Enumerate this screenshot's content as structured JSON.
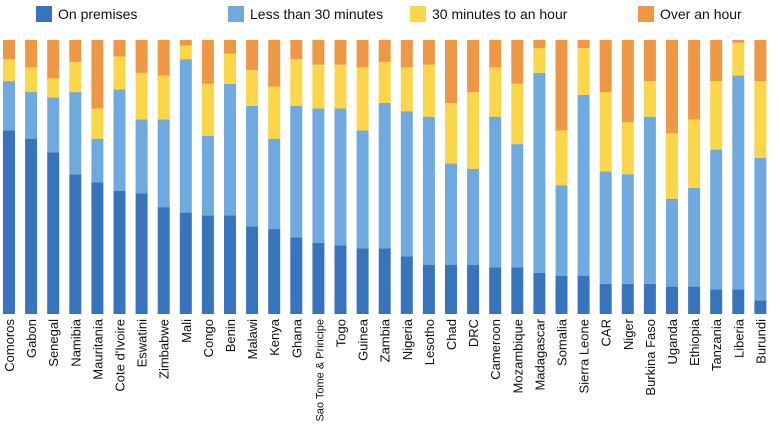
{
  "chart_data": {
    "type": "bar",
    "stacked": true,
    "normalized": true,
    "title": "",
    "xlabel": "",
    "ylabel": "",
    "ylim": [
      0,
      100
    ],
    "grid": false,
    "legend_position": "top",
    "categories": [
      "Comoros",
      "Gabon",
      "Senegal",
      "Namibia",
      "Mauritania",
      "Cote d'Ivoire",
      "Eswatini",
      "Zimbabwe",
      "Mali",
      "Congo",
      "Benin",
      "Malawi",
      "Kenya",
      "Ghana",
      "Sao Tome & Principe",
      "Togo",
      "Guinea",
      "Zambia",
      "Nigeria",
      "Lesotho",
      "Chad",
      "DRC",
      "Cameroon",
      "Mozambique",
      "Madagascar",
      "Somalia",
      "Sierra Leone",
      "CAR",
      "Niger",
      "Burkina Faso",
      "Uganda",
      "Ethiopia",
      "Tanzania",
      "Liberia",
      "Burundi"
    ],
    "series": [
      {
        "name": "On premises",
        "color": "#3874BB",
        "values": [
          67,
          64,
          59,
          51,
          48,
          45,
          44,
          39,
          37,
          36,
          36,
          32,
          31,
          28,
          26,
          25,
          24,
          24,
          21,
          18,
          18,
          18,
          17,
          17,
          15,
          14,
          14,
          11,
          11,
          11,
          10,
          10,
          9,
          9,
          5
        ]
      },
      {
        "name": "Less than 30 minutes",
        "color": "#6FA9DD",
        "values": [
          18,
          17,
          20,
          30,
          16,
          37,
          27,
          32,
          56,
          29,
          48,
          44,
          33,
          48,
          49,
          50,
          43,
          53,
          53,
          54,
          37,
          35,
          55,
          45,
          73,
          33,
          66,
          41,
          40,
          61,
          32,
          36,
          51,
          78,
          52
        ]
      },
      {
        "name": "30 minutes to an hour",
        "color": "#F9D64A",
        "values": [
          8,
          9,
          7,
          11,
          11,
          12,
          17,
          16,
          5,
          19,
          11,
          13,
          19,
          17,
          16,
          16,
          23,
          15,
          16,
          19,
          22,
          28,
          18,
          22,
          9,
          20,
          17,
          29,
          19,
          13,
          24,
          25,
          25,
          12,
          28
        ]
      },
      {
        "name": "Over an hour",
        "color": "#EE9744",
        "values": [
          7,
          10,
          14,
          8,
          25,
          6,
          12,
          13,
          2,
          16,
          5,
          11,
          17,
          7,
          9,
          9,
          10,
          8,
          10,
          9,
          23,
          19,
          10,
          16,
          3,
          33,
          3,
          19,
          30,
          15,
          34,
          29,
          15,
          1,
          15
        ]
      }
    ]
  }
}
